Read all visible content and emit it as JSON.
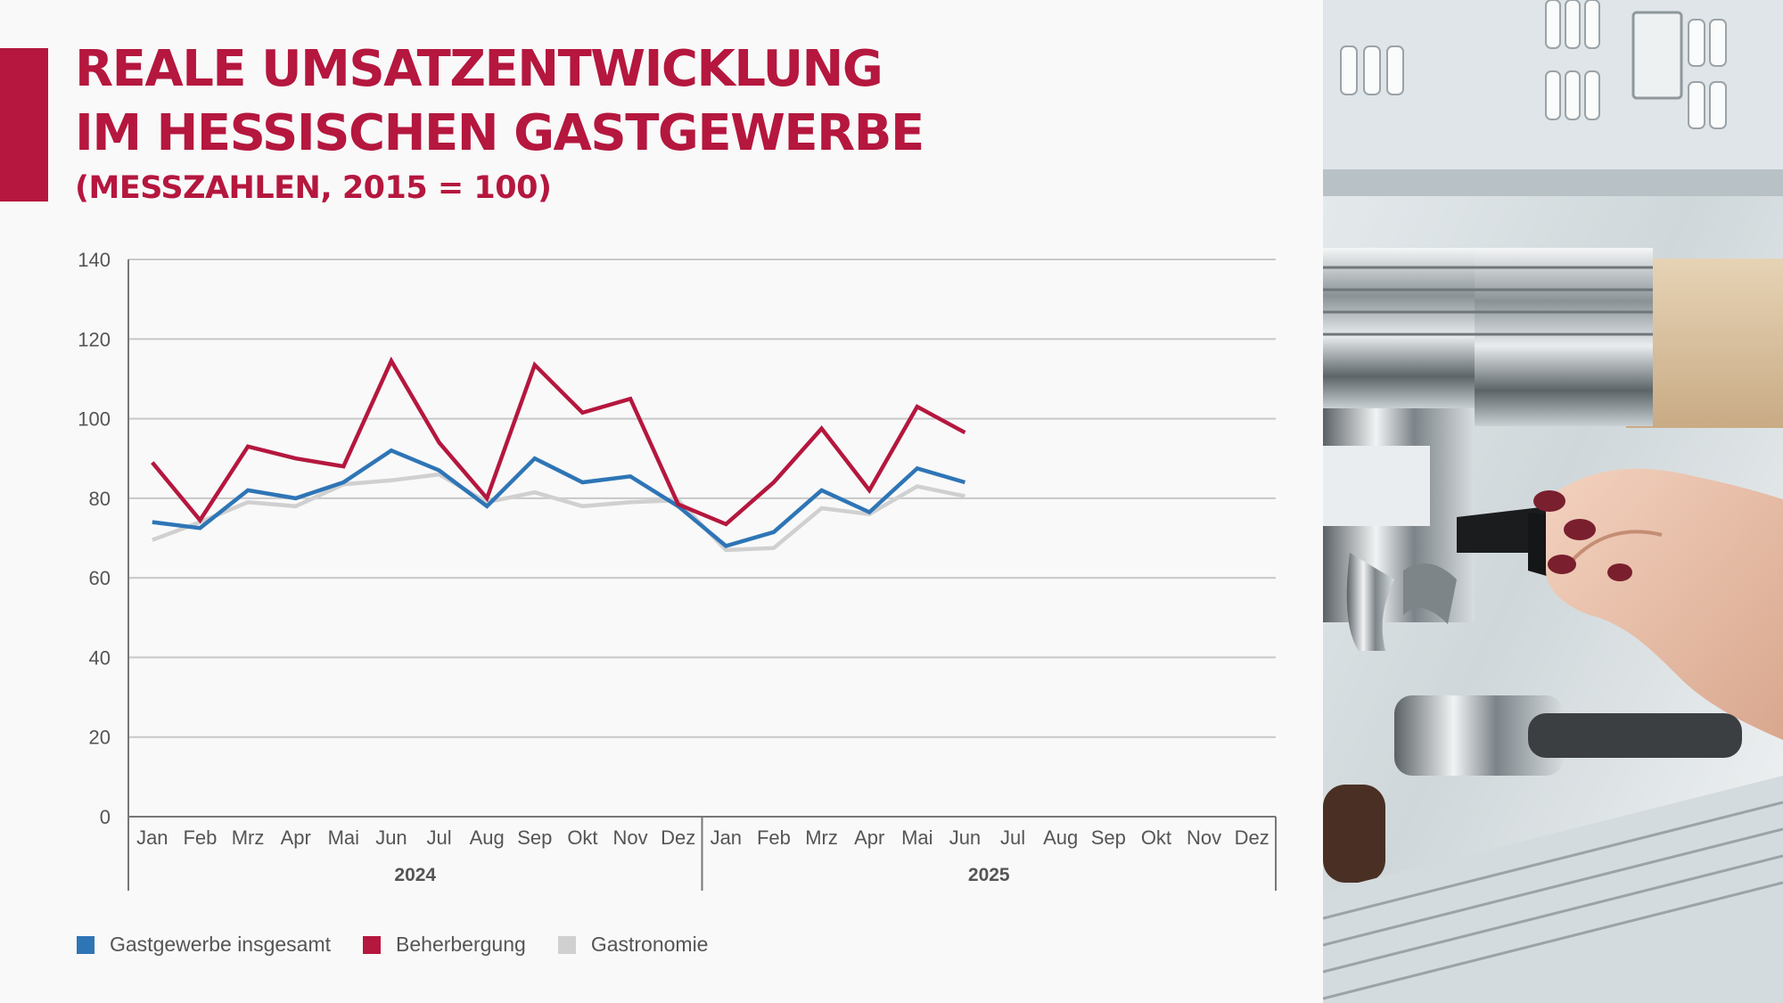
{
  "header": {
    "title_line1": "REALE UMSATZENTWICKLUNG",
    "title_line2": "IM HESSISCHEN GASTGEWERBE",
    "subtitle": "(MESSZAHLEN, 2015 = 100)"
  },
  "colors": {
    "brand": "#b5173e",
    "series_total": "#2e75b6",
    "series_lodging": "#b5173e",
    "series_gastro": "#d0d0d0",
    "grid": "#c8c8c8",
    "axis": "#777777",
    "tick_text": "#555555"
  },
  "chart_data": {
    "type": "line",
    "title": "REALE UMSATZENTWICKLUNG IM HESSISCHEN GASTGEWERBE",
    "subtitle": "(MESSZAHLEN, 2015 = 100)",
    "xlabel": "",
    "ylabel": "",
    "ylim": [
      0,
      140
    ],
    "yticks": [
      0,
      20,
      40,
      60,
      80,
      100,
      120,
      140
    ],
    "grid": true,
    "legend_position": "bottom-left",
    "categories": [
      "Jan",
      "Feb",
      "Mrz",
      "Apr",
      "Mai",
      "Jun",
      "Jul",
      "Aug",
      "Sep",
      "Okt",
      "Nov",
      "Dez",
      "Jan",
      "Feb",
      "Mrz",
      "Apr",
      "Mai",
      "Jun",
      "Jul",
      "Aug",
      "Sep",
      "Okt",
      "Nov",
      "Dez"
    ],
    "groups": [
      {
        "label": "2024",
        "start": 0,
        "end": 11
      },
      {
        "label": "2025",
        "start": 12,
        "end": 23
      }
    ],
    "series": [
      {
        "name": "Gastgewerbe insgesamt",
        "color": "#2e75b6",
        "values": [
          74,
          72.5,
          82,
          80,
          84,
          92,
          87,
          78,
          90,
          84,
          85.5,
          78,
          68,
          71.5,
          82,
          76.5,
          87.5,
          84,
          null,
          null,
          null,
          null,
          null,
          null
        ]
      },
      {
        "name": "Beherbergung",
        "color": "#b5173e",
        "values": [
          89,
          74.5,
          93,
          90,
          88,
          114.5,
          94,
          80,
          113.5,
          101.5,
          105,
          78.5,
          73.5,
          84,
          97.5,
          82,
          103,
          96.5,
          null,
          null,
          null,
          null,
          null,
          null
        ]
      },
      {
        "name": "Gastronomie",
        "color": "#d0d0d0",
        "values": [
          69.5,
          74,
          79,
          78,
          83.5,
          84.5,
          86,
          79,
          81.5,
          78,
          79,
          79.5,
          67,
          67.5,
          77.5,
          76,
          83,
          80.5,
          null,
          null,
          null,
          null,
          null,
          null
        ]
      }
    ]
  },
  "photo": {
    "description_icon": "espresso-machine-photo"
  }
}
